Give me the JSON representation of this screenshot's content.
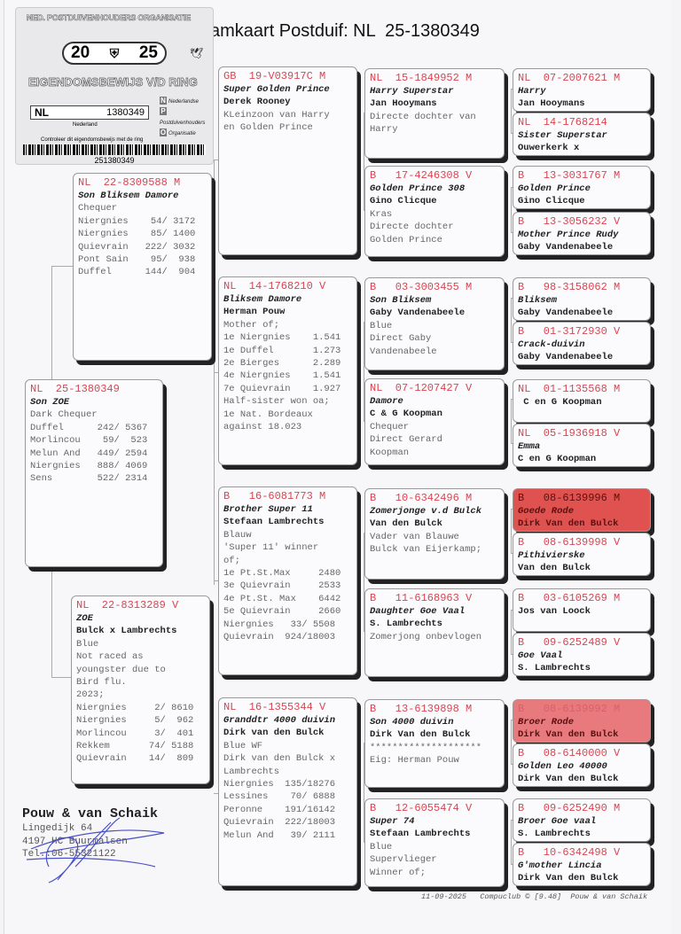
{
  "title": "amkaart Postduif: NL  25-1380349",
  "sticker": {
    "org": "NED. POSTDUIVENHOUDERS ORGANISATIE",
    "year_left": "20",
    "year_right": "25",
    "heading": "EIGENDOMSBEWIJS V/D RING",
    "country": "NL",
    "ring": "1380349",
    "land": "Nederland",
    "npo": [
      "Nederlandse",
      "Postduivenhouders",
      "Organisatie"
    ],
    "control": "Controleer dit eigendomsbewijs met de ring",
    "barcode": "251380349"
  },
  "subject": {
    "ring": "NL  25-1380349",
    "name": "Son ZOE",
    "owner": "",
    "lines": [
      "",
      "Dark Chequer",
      "",
      "",
      "",
      "",
      "",
      "Duffel      242/ 5367",
      "Morlincou    59/  523",
      "Melun And   449/ 2594",
      "Niergnies   888/ 4069",
      "Sens        522/ 2314"
    ]
  },
  "parents": [
    {
      "ring": "NL  22-8309588 M",
      "name": "Son Bliksem Damore",
      "owner": "",
      "lines": [
        "",
        "Chequer",
        "",
        "",
        "",
        "",
        "",
        "Niergnies    54/ 3172",
        "Niergnies    85/ 1400",
        "Quievrain   222/ 3032",
        "Pont Sain    95/  938",
        "Duffel      144/  904"
      ]
    },
    {
      "ring": "NL  22-8313289 V",
      "name": "ZOE",
      "owner": "Bulck x Lambrechts",
      "lines": [
        "Blue",
        "Not raced as",
        "youngster due to",
        "Bird flu.",
        "",
        "2023;",
        "Niergnies     2/ 8610",
        "Niergnies     5/  962",
        "Morlincou     3/  401",
        "Rekkem       74/ 5188",
        "Quievrain    14/  809"
      ]
    }
  ],
  "grandparents": [
    {
      "ring": "GB  19-V03917C M",
      "name": "Super Golden Prince",
      "owner": "Derek Rooney",
      "lines": [
        "",
        "KLeinzoon van Harry",
        "en Golden Prince"
      ]
    },
    {
      "ring": "NL  14-1768210 V",
      "name": "Bliksem Damore",
      "owner": "Herman Pouw",
      "lines": [
        "",
        "Mother of;",
        "1e Niergnies    1.541",
        "1e Duffel       1.273",
        "2e Bierges      2.289",
        "4e Niergnies    1.541",
        "7e Quievrain    1.927",
        "",
        "Half-sister won oa;",
        "1e Nat. Bordeaux",
        "against 18.023"
      ]
    },
    {
      "ring": "B   16-6081773 M",
      "name": "Brother Super 11",
      "owner": "Stefaan Lambrechts",
      "lines": [
        "Blauw",
        "'Super 11' winner",
        "of;",
        "1e Pt.St.Max     2480",
        "3e Quievrain     2533",
        "4e Pt.St. Max    6442",
        "5e Quievrain     2660",
        "",
        "",
        "Niergnies   33/ 5508",
        "Quievrain  924/18003"
      ]
    },
    {
      "ring": "NL  16-1355344 V",
      "name": "Granddtr 4000 duivin",
      "owner": "Dirk van den Bulck",
      "lines": [
        "Blue WF",
        "Dirk van den Bulck x",
        "Lambrechts",
        "Niergnies  135/18276",
        "Lessines    70/ 6888",
        "Peronne    191/16142",
        "Quievrain  222/18003",
        "Melun And   39/ 2111"
      ]
    }
  ],
  "great_grandparents": [
    {
      "ring": "NL  15-1849952 M",
      "name": "Harry Superstar",
      "owner": "Jan Hooymans",
      "lines": [
        "",
        "Directe dochter van",
        "Harry"
      ]
    },
    {
      "ring": "B   17-4246308 V",
      "name": "Golden Prince 308",
      "owner": "Gino Clicque",
      "lines": [
        "Kras",
        "Directe dochter",
        "Golden Prince"
      ]
    },
    {
      "ring": "B   03-3003455 M",
      "name": "Son Bliksem",
      "owner": "Gaby Vandenabeele",
      "lines": [
        "Blue",
        "Direct Gaby",
        "Vandenabeele"
      ]
    },
    {
      "ring": "NL  07-1207427 V",
      "name": "Damore",
      "owner": "C & G Koopman",
      "lines": [
        "Chequer",
        "Direct Gerard",
        "Koopman"
      ]
    },
    {
      "ring": "B   10-6342496 M",
      "name": "Zomerjonge v.d Bulck",
      "owner": "Van den Bulck",
      "lines": [
        "",
        "Vader van Blauwe",
        "Bulck van Eijerkamp;"
      ]
    },
    {
      "ring": "B   11-6168963 V",
      "name": "Daughter Goe Vaal",
      "owner": "S. Lambrechts",
      "lines": [
        "",
        "Zomerjong onbevlogen"
      ]
    },
    {
      "ring": "B   13-6139898 M",
      "name": "Son 4000 duivin",
      "owner": "Dirk Van den Bulck",
      "lines": [
        "",
        "********************",
        "Eig: Herman Pouw"
      ]
    },
    {
      "ring": "B   12-6055474 V",
      "name": "Super 74",
      "owner": "Stefaan Lambrechts",
      "lines": [
        "Blue",
        "Supervlieger",
        "Winner of;"
      ]
    }
  ],
  "gen4": [
    {
      "ring": "NL  07-2007621 M",
      "name": "Harry",
      "owner": "Jan Hooymans"
    },
    {
      "ring": "NL  14-1768214",
      "name": "Sister Superstar",
      "owner": "Ouwerkerk x"
    },
    {
      "ring": "B   13-3031767 M",
      "name": "Golden Prince",
      "owner": "Gino Clicque"
    },
    {
      "ring": "B   13-3056232 V",
      "name": "Mother Prince Rudy",
      "owner": "Gaby Vandenabeele"
    },
    {
      "ring": "B   98-3158062 M",
      "name": "Bliksem",
      "owner": "Gaby Vandenabeele"
    },
    {
      "ring": "B   01-3172930 V",
      "name": "Crack-duivin",
      "owner": "Gaby Vandenabeele"
    },
    {
      "ring": "NL  01-1135568 M",
      "name": "",
      "owner": " C en G Koopman"
    },
    {
      "ring": "NL  05-1936918 V",
      "name": "Emma",
      "owner": "C en G Koopman"
    },
    {
      "ring": "B   08-6139996 M",
      "name": "Goede Rode",
      "owner": "Dirk Van den Bulck",
      "highlight": "#e0524f"
    },
    {
      "ring": "B   08-6139998 V",
      "name": "Pithivierske",
      "owner": "Van den Bulck"
    },
    {
      "ring": "B   03-6105269 M",
      "name": "",
      "owner": "Jos van Loock"
    },
    {
      "ring": "B   09-6252489 V",
      "name": "Goe Vaal",
      "owner": "S. Lambrechts"
    },
    {
      "ring": "B   08-6139992 M",
      "name": "Broer Rode",
      "owner": "Dirk Van den Bulck",
      "highlight": "#e8797d"
    },
    {
      "ring": "B   08-6140000 V",
      "name": "Golden Leo 40000",
      "owner": "Dirk Van den Bulck"
    },
    {
      "ring": "B   09-6252490 M",
      "name": "Broer Goe vaal",
      "owner": "S. Lambrechts"
    },
    {
      "ring": "B   10-6342498 V",
      "name": "G'mother Lincia",
      "owner": "Dirk Van den Bulck"
    }
  ],
  "breeder": {
    "name": "Pouw & van Schaik",
    "address": "Lingedijk 64",
    "city": "4197 HC  Buurmalsen",
    "phone": "Tel.:06-55321122"
  },
  "footer": "11-09-2025   Compuclub © [9.48]  Pouw & van Schaik",
  "colors": {
    "ring_text": "#d94550",
    "highlight_strong": "#e0524f",
    "highlight_light": "#e8797d"
  }
}
